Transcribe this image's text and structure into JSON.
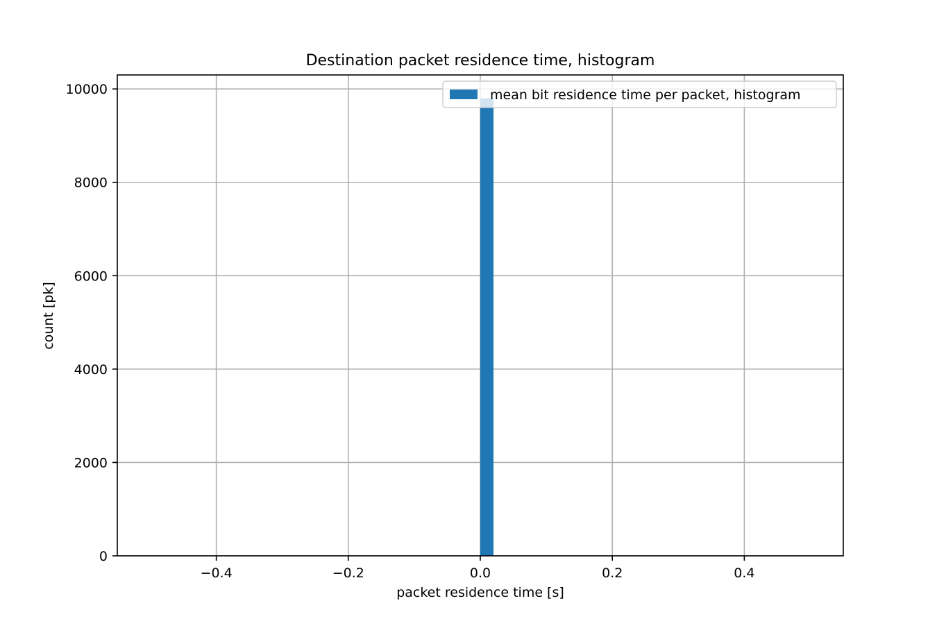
{
  "chart_data": {
    "type": "bar",
    "title": "Destination packet residence time, histogram",
    "xlabel": "packet residence time [s]",
    "ylabel": "count [pk]",
    "xlim": [
      -0.55,
      0.55
    ],
    "ylim": [
      0,
      10300
    ],
    "xticks": [
      -0.4,
      -0.2,
      0.0,
      0.2,
      0.4
    ],
    "xtick_labels": [
      "−0.4",
      "−0.2",
      "0.0",
      "0.2",
      "0.4"
    ],
    "yticks": [
      0,
      2000,
      4000,
      6000,
      8000,
      10000
    ],
    "ytick_labels": [
      "0",
      "2000",
      "4000",
      "6000",
      "8000",
      "10000"
    ],
    "grid": true,
    "legend_position": "upper right",
    "series": [
      {
        "name": "mean bit residence time per packet, histogram",
        "color": "#1f77b4",
        "bins": [
          {
            "x0": 0.0,
            "x1": 0.02,
            "count": 9800
          }
        ]
      }
    ]
  }
}
